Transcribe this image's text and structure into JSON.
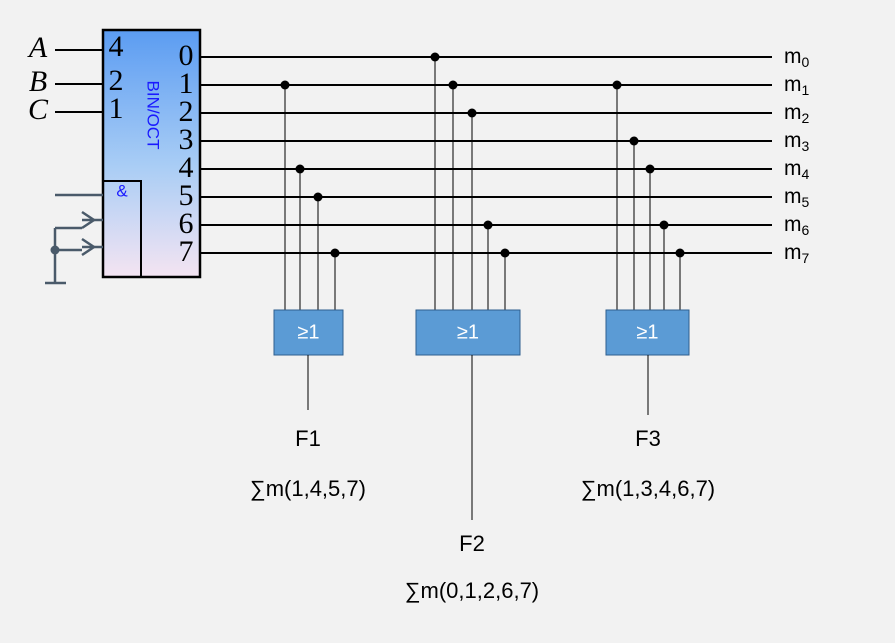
{
  "decoder": {
    "inputs": [
      "A",
      "B",
      "C"
    ],
    "weights": [
      "4",
      "2",
      "1"
    ],
    "label": "BIN/OCT",
    "enable": "&",
    "outputs": [
      "0",
      "1",
      "2",
      "3",
      "4",
      "5",
      "6",
      "7"
    ]
  },
  "minterms": [
    {
      "base": "m",
      "sub": "0"
    },
    {
      "base": "m",
      "sub": "1"
    },
    {
      "base": "m",
      "sub": "2"
    },
    {
      "base": "m",
      "sub": "3"
    },
    {
      "base": "m",
      "sub": "4"
    },
    {
      "base": "m",
      "sub": "5"
    },
    {
      "base": "m",
      "sub": "6"
    },
    {
      "base": "m",
      "sub": "7"
    }
  ],
  "gates": [
    {
      "symbol": "≥1",
      "name": "F1",
      "expression": "∑m(1,4,5,7)"
    },
    {
      "symbol": "≥1",
      "name": "F2",
      "expression": "∑m(0,1,2,6,7)"
    },
    {
      "symbol": "≥1",
      "name": "F3",
      "expression": "∑m(1,3,4,6,7)"
    }
  ]
}
